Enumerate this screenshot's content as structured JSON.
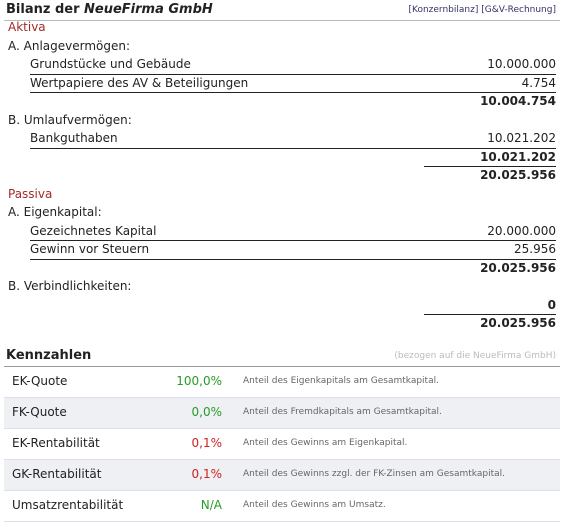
{
  "header": {
    "title": "Bilanz der",
    "title_company": "NeueFirma GmbH",
    "links": [
      "[Konzernbilanz]",
      "[G&V-Rechnung]"
    ]
  },
  "balance": [
    {
      "label": "Aktiva",
      "sections": [
        {
          "label": "A. Anlagevermögen:",
          "items": [
            {
              "label": "Grundstücke und Gebäude",
              "amount": "10.000.000"
            },
            {
              "label": "Wertpapiere des AV & Beteiligungen",
              "amount": "4.754"
            }
          ],
          "subtotal": "10.004.754"
        },
        {
          "label": "B. Umlaufvermögen:",
          "items": [
            {
              "label": "Bankguthaben",
              "amount": "10.021.202"
            }
          ],
          "subtotal": "10.021.202"
        }
      ],
      "total": "20.025.956"
    },
    {
      "label": "Passiva",
      "sections": [
        {
          "label": "A. Eigenkapital:",
          "items": [
            {
              "label": "Gezeichnetes Kapital",
              "amount": "20.000.000"
            },
            {
              "label": "Gewinn vor Steuern",
              "amount": "25.956"
            }
          ],
          "subtotal": "20.025.956"
        },
        {
          "label": "B. Verbindlichkeiten:",
          "items": [],
          "subtotal": "0"
        }
      ],
      "total": "20.025.956"
    }
  ],
  "kennzahlen": {
    "title": "Kennzahlen",
    "note": "(bezogen auf die NeueFirma GmbH)",
    "rows": [
      {
        "label": "EK-Quote",
        "value": "100,0%",
        "color": "#2a9a2a",
        "description": "Anteil des Eigenkapitals am Gesamtkapital."
      },
      {
        "label": "FK-Quote",
        "value": "0,0%",
        "color": "#2a9a2a",
        "description": "Anteil des Fremdkapitals am Gesamtkapital."
      },
      {
        "label": "EK-Rentabilität",
        "value": "0,1%",
        "color": "#cc2222",
        "description": "Anteil des Gewinns am Eigenkapital."
      },
      {
        "label": "GK-Rentabilität",
        "value": "0,1%",
        "color": "#cc2222",
        "description": "Anteil des Gewinns zzgl. der FK-Zinsen am Gesamtkapital."
      },
      {
        "label": "Umsatzrentabilität",
        "value": "N/A",
        "color": "#2a9a2a",
        "description": "Anteil des Gewinns am Umsatz."
      }
    ]
  }
}
